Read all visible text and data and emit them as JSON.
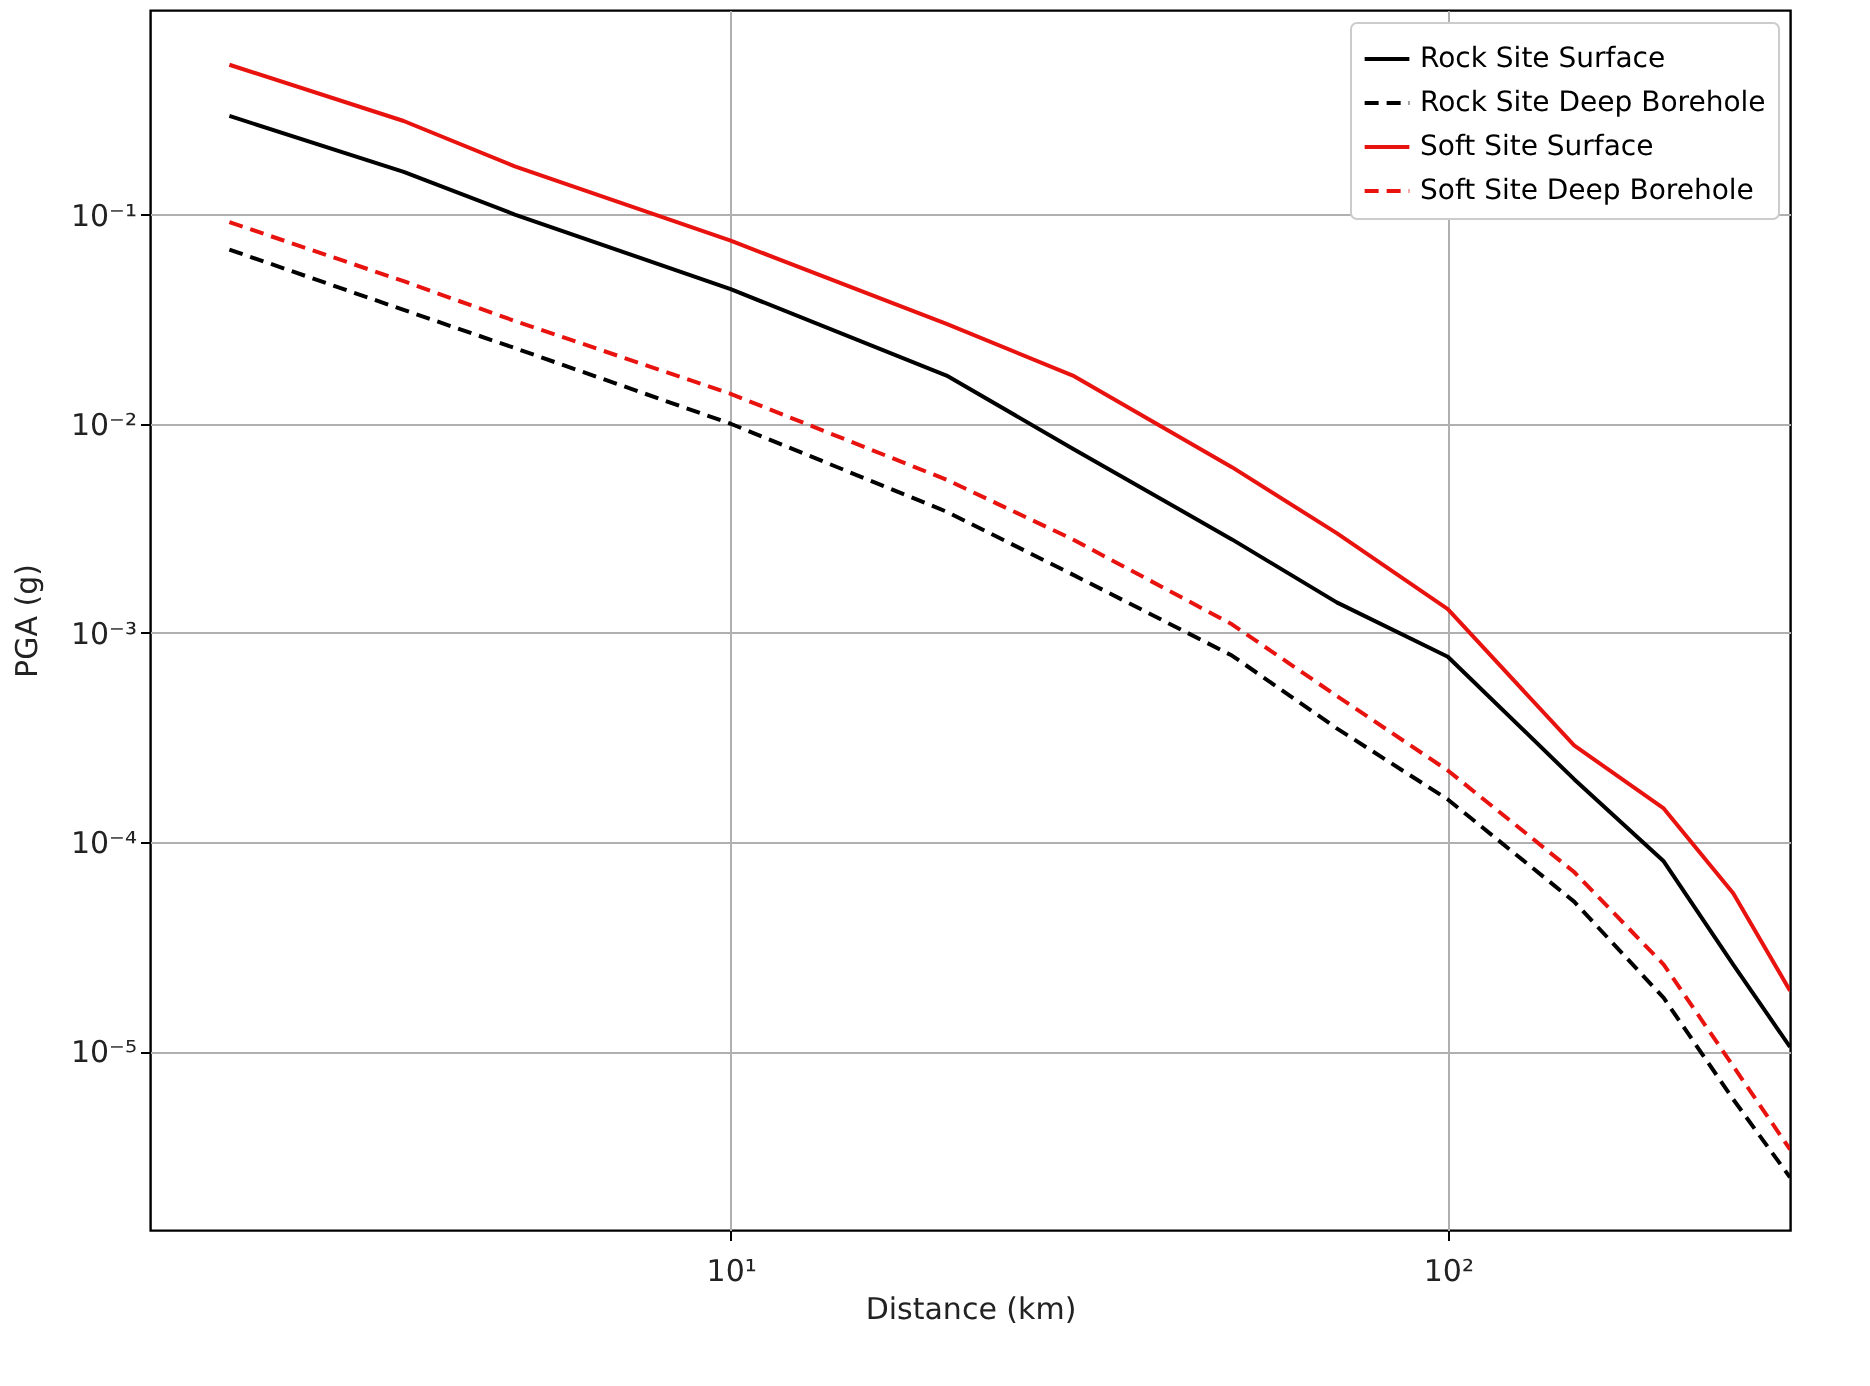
{
  "chart_data": {
    "type": "line",
    "xlabel": "Distance (km)",
    "ylabel": "PGA (g)",
    "log": "xy",
    "grid": true,
    "legend": "top right",
    "marker": "none",
    "xlim": [
      1.55,
      300
    ],
    "ylim": [
      1.4e-06,
      0.95
    ],
    "xticks": [
      {
        "value": 10,
        "label": "10¹"
      },
      {
        "value": 100,
        "label": "10²"
      }
    ],
    "yticks": [
      {
        "value": 1e-05,
        "label": "10⁻⁵"
      },
      {
        "value": 0.0001,
        "label": "10⁻⁴"
      },
      {
        "value": 0.001,
        "label": "10⁻³"
      },
      {
        "value": 0.01,
        "label": "10⁻²"
      },
      {
        "value": 0.1,
        "label": "10⁻¹"
      }
    ],
    "x": [
      2,
      3.5,
      5,
      10,
      20,
      30,
      50,
      70,
      100,
      150,
      200,
      250,
      300
    ],
    "series": [
      {
        "name": "Rock Site Surface",
        "color": "#000000",
        "line_style": "solid",
        "values": [
          0.296,
          0.16,
          0.1,
          0.044,
          0.017,
          0.0076,
          0.0028,
          0.0014,
          0.00077,
          0.0002,
          8.1e-05,
          2.6e-05,
          1.05e-05
        ]
      },
      {
        "name": "Rock Site Deep Borehole",
        "color": "#000000",
        "line_style": "dashed",
        "values": [
          0.068,
          0.035,
          0.023,
          0.01,
          0.0038,
          0.0019,
          0.00078,
          0.00035,
          0.00016,
          5.2e-05,
          1.8e-05,
          5.9e-06,
          2.5e-06
        ]
      },
      {
        "name": "Soft Site Surface",
        "color": "#e8130f",
        "line_style": "solid",
        "values": [
          0.52,
          0.28,
          0.17,
          0.075,
          0.03,
          0.017,
          0.0062,
          0.003,
          0.0013,
          0.00029,
          0.000145,
          5.7e-05,
          1.95e-05
        ]
      },
      {
        "name": "Soft Site Deep Borehole",
        "color": "#e8130f",
        "line_style": "dashed",
        "values": [
          0.092,
          0.048,
          0.031,
          0.0139,
          0.0054,
          0.0028,
          0.0011,
          0.0005,
          0.00022,
          7.2e-05,
          2.6e-05,
          8.5e-06,
          3.4e-06
        ]
      }
    ]
  }
}
